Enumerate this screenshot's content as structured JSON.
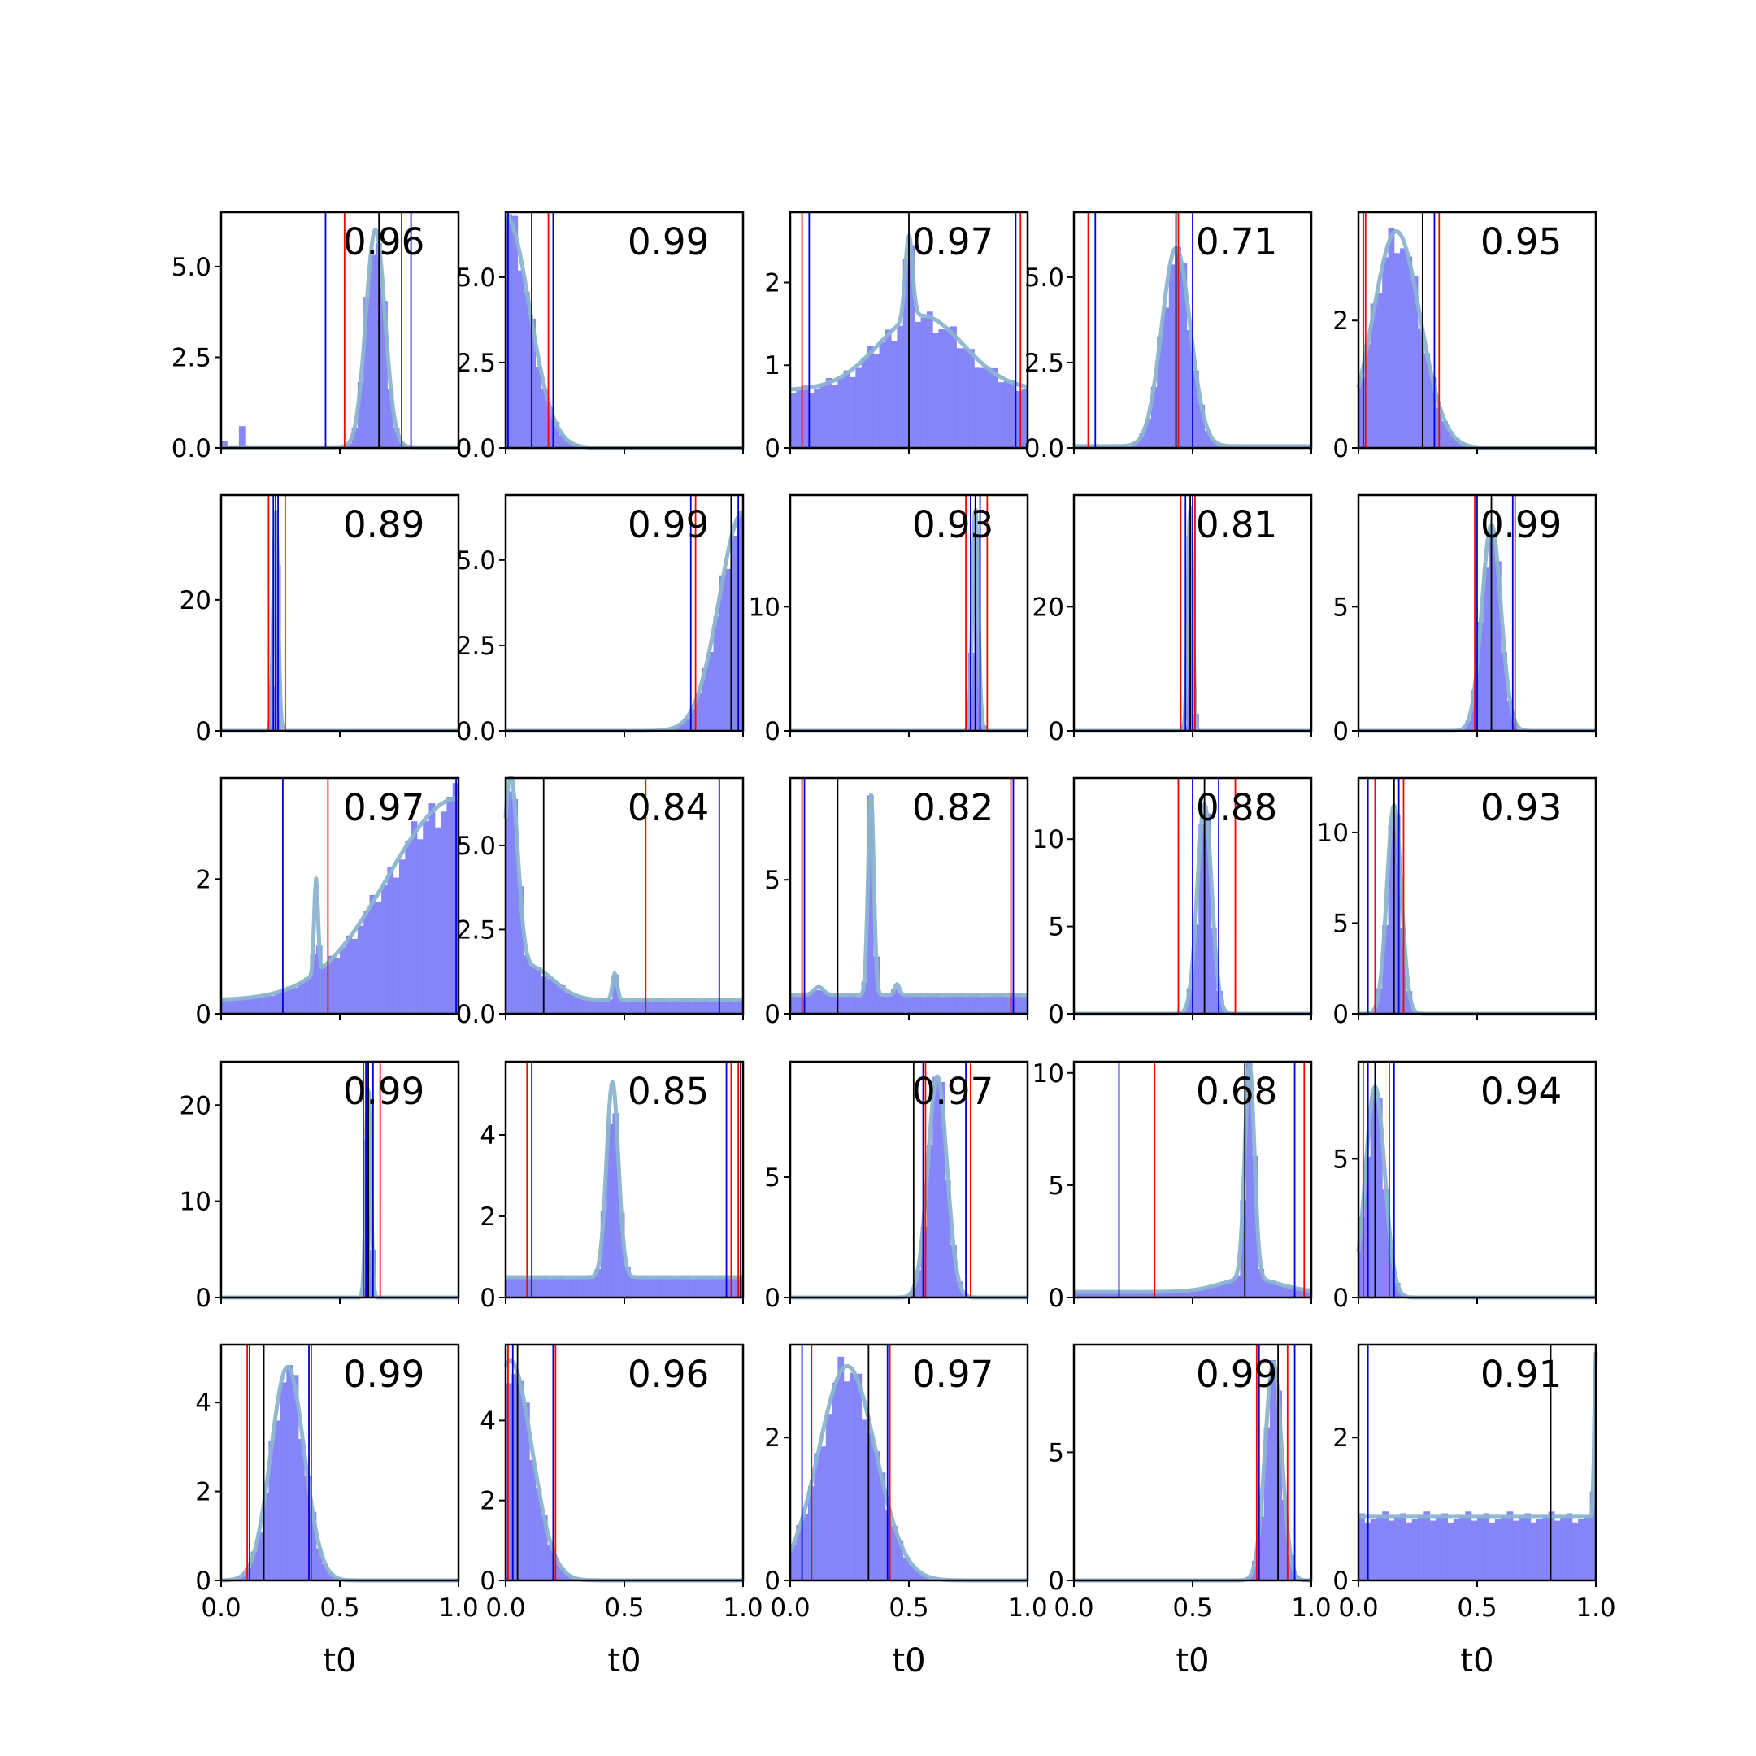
{
  "chart_data": {
    "type": "bar",
    "layout_word": "5x5 grid of histogram panels with shared x axis",
    "xlabel": "t0",
    "xlim": [
      0,
      1
    ],
    "x_ticks": [
      "0.0",
      "0.5",
      "1.0"
    ],
    "colors": {
      "hist": "#8080f8",
      "kde": "#8cb4d0",
      "red_line": "#ff0000",
      "blue_line": "#0000dd",
      "black_line": "#000000"
    },
    "panels": [
      {
        "annotation": "0.96",
        "ylim": [
          0,
          6.5
        ],
        "yticks": [
          0,
          2.5,
          5.0
        ],
        "ytick_labels": [
          "0.0",
          "2.5",
          "5.0"
        ],
        "peaks": [
          {
            "c": 0.65,
            "w": 0.04,
            "h": 6.0
          }
        ],
        "base": 0.02,
        "spikes": [
          {
            "c": 0.02,
            "h": 0.2
          },
          {
            "c": 0.09,
            "h": 0.6
          }
        ],
        "red": [
          0.52,
          0.76
        ],
        "blue": [
          0.44,
          0.8
        ],
        "black": [
          0.665
        ]
      },
      {
        "annotation": "0.99",
        "ylim": [
          0,
          6.9
        ],
        "yticks": [
          0,
          2.5,
          5.0
        ],
        "ytick_labels": [
          "0.0",
          "2.5",
          "5.0"
        ],
        "peaks": [
          {
            "c": 0.0,
            "w": 0.1,
            "h": 6.8
          }
        ],
        "base": 0,
        "spikes": [],
        "red": [
          0.18
        ],
        "blue": [
          0.01,
          0.2
        ],
        "black": [
          0.11
        ]
      },
      {
        "annotation": "0.97",
        "ylim": [
          0,
          2.85
        ],
        "yticks": [
          0,
          1,
          2
        ],
        "ytick_labels": [
          "0",
          "1",
          "2"
        ],
        "peaks": [
          {
            "c": 0.5,
            "w": 0.015,
            "h": 1.0
          },
          {
            "c": 0.55,
            "w": 0.18,
            "h": 0.9
          }
        ],
        "base": 0.7,
        "spikes": [],
        "red": [
          0.05,
          0.97
        ],
        "blue": [
          0.08,
          0.95
        ],
        "black": [
          0.5
        ]
      },
      {
        "annotation": "0.71",
        "ylim": [
          0,
          6.9
        ],
        "yticks": [
          0,
          2.5,
          5.0
        ],
        "ytick_labels": [
          "0.0",
          "2.5",
          "5.0"
        ],
        "peaks": [
          {
            "c": 0.43,
            "w": 0.06,
            "h": 5.8
          }
        ],
        "base": 0.05,
        "spikes": [],
        "red": [
          0.06,
          0.44
        ],
        "blue": [
          0.09,
          0.5
        ],
        "black": [
          0.43
        ]
      },
      {
        "annotation": "0.95",
        "ylim": [
          0,
          3.7
        ],
        "yticks": [
          0,
          2
        ],
        "ytick_labels": [
          "0",
          "2"
        ],
        "peaks": [
          {
            "c": 0.16,
            "w": 0.1,
            "h": 3.4
          }
        ],
        "base": 0,
        "spikes": [],
        "red": [
          0.03,
          0.34
        ],
        "blue": [
          0.02,
          0.32
        ],
        "black": [
          0.27
        ]
      },
      {
        "annotation": "0.89",
        "ylim": [
          0,
          36
        ],
        "yticks": [
          0,
          20
        ],
        "ytick_labels": [
          "0",
          "20"
        ],
        "peaks": [
          {
            "c": 0.23,
            "w": 0.01,
            "h": 34
          }
        ],
        "base": 0,
        "spikes": [],
        "red": [
          0.2,
          0.27
        ],
        "blue": [
          0.22,
          0.24
        ],
        "black": [
          0.23
        ]
      },
      {
        "annotation": "0.99",
        "ylim": [
          0,
          6.9
        ],
        "yticks": [
          0,
          2.5,
          5.0
        ],
        "ytick_labels": [
          "0.0",
          "2.5",
          "5.0"
        ],
        "peaks": [
          {
            "c": 1.0,
            "w": 0.1,
            "h": 6.4
          }
        ],
        "base": 0,
        "spikes": [],
        "red": [
          0.8
        ],
        "blue": [
          0.78,
          0.98
        ],
        "black": [
          0.95
        ]
      },
      {
        "annotation": "0.93",
        "ylim": [
          0,
          19
        ],
        "yticks": [
          0,
          10
        ],
        "ytick_labels": [
          "0",
          "10"
        ],
        "peaks": [
          {
            "c": 0.78,
            "w": 0.012,
            "h": 18
          }
        ],
        "base": 0,
        "spikes": [],
        "red": [
          0.74,
          0.83
        ],
        "blue": [
          0.76,
          0.8
        ],
        "black": [
          0.78
        ]
      },
      {
        "annotation": "0.81",
        "ylim": [
          0,
          38
        ],
        "yticks": [
          0,
          20
        ],
        "ytick_labels": [
          "0",
          "20"
        ],
        "peaks": [
          {
            "c": 0.49,
            "w": 0.01,
            "h": 36
          }
        ],
        "base": 0,
        "spikes": [],
        "red": [
          0.45,
          0.51
        ],
        "blue": [
          0.47,
          0.5
        ],
        "black": [
          0.49
        ]
      },
      {
        "annotation": "0.99",
        "ylim": [
          0,
          9.5
        ],
        "yticks": [
          0,
          5
        ],
        "ytick_labels": [
          "0",
          "5"
        ],
        "peaks": [
          {
            "c": 0.56,
            "w": 0.04,
            "h": 8.3
          }
        ],
        "base": 0,
        "spikes": [],
        "red": [
          0.49,
          0.66
        ],
        "blue": [
          0.5,
          0.65
        ],
        "black": [
          0.56
        ]
      },
      {
        "annotation": "0.97",
        "ylim": [
          0,
          3.5
        ],
        "yticks": [
          0,
          2
        ],
        "ytick_labels": [
          "0",
          "2"
        ],
        "peaks": [
          {
            "c": 1.0,
            "w": 0.3,
            "h": 3.0
          },
          {
            "c": 0.4,
            "w": 0.008,
            "h": 1.4
          }
        ],
        "base": 0.2,
        "spikes": [],
        "red": [
          0.45,
          1.0
        ],
        "blue": [
          0.26,
          0.99
        ],
        "black": [
          1.0
        ]
      },
      {
        "annotation": "0.84",
        "ylim": [
          0,
          7.0
        ],
        "yticks": [
          0,
          2.5,
          5.0
        ],
        "ytick_labels": [
          "0.0",
          "2.5",
          "5.0"
        ],
        "peaks": [
          {
            "c": 0.02,
            "w": 0.03,
            "h": 6.0
          },
          {
            "c": 0.1,
            "w": 0.1,
            "h": 1.0
          },
          {
            "c": 0.46,
            "w": 0.01,
            "h": 0.8
          }
        ],
        "base": 0.4,
        "spikes": [],
        "red": [
          0.59
        ],
        "blue": [
          0.9
        ],
        "black": [
          0.16
        ]
      },
      {
        "annotation": "0.82",
        "ylim": [
          0,
          8.8
        ],
        "yticks": [
          0,
          5
        ],
        "ytick_labels": [
          "0",
          "5"
        ],
        "peaks": [
          {
            "c": 0.34,
            "w": 0.012,
            "h": 7.5
          },
          {
            "c": 0.12,
            "w": 0.02,
            "h": 0.3
          },
          {
            "c": 0.45,
            "w": 0.01,
            "h": 0.4
          }
        ],
        "base": 0.7,
        "spikes": [],
        "red": [
          0.05,
          0.93
        ],
        "blue": [
          0.06,
          0.94
        ],
        "black": [
          0.2
        ]
      },
      {
        "annotation": "0.88",
        "ylim": [
          0,
          13.5
        ],
        "yticks": [
          0,
          5,
          10
        ],
        "ytick_labels": [
          "0",
          "5",
          "10"
        ],
        "peaks": [
          {
            "c": 0.55,
            "w": 0.03,
            "h": 12
          }
        ],
        "base": 0,
        "spikes": [],
        "red": [
          0.44,
          0.68
        ],
        "blue": [
          0.5,
          0.61
        ],
        "black": [
          0.55
        ]
      },
      {
        "annotation": "0.93",
        "ylim": [
          0,
          13
        ],
        "yticks": [
          0,
          5,
          10
        ],
        "ytick_labels": [
          "0",
          "5",
          "10"
        ],
        "peaks": [
          {
            "c": 0.15,
            "w": 0.03,
            "h": 11.5
          }
        ],
        "base": 0,
        "spikes": [],
        "red": [
          0.07,
          0.19
        ],
        "blue": [
          0.04,
          0.17
        ],
        "black": [
          0.15
        ]
      },
      {
        "annotation": "0.99",
        "ylim": [
          0,
          24.5
        ],
        "yticks": [
          0,
          10,
          20
        ],
        "ytick_labels": [
          "0",
          "10",
          "20"
        ],
        "peaks": [
          {
            "c": 0.62,
            "w": 0.01,
            "h": 22
          }
        ],
        "base": 0,
        "spikes": [],
        "red": [
          0.6,
          0.67
        ],
        "blue": [
          0.61,
          0.64
        ],
        "black": [
          0.62
        ]
      },
      {
        "annotation": "0.85",
        "ylim": [
          0,
          5.8
        ],
        "yticks": [
          0,
          2,
          4
        ],
        "ytick_labels": [
          "0",
          "2",
          "4"
        ],
        "peaks": [
          {
            "c": 0.45,
            "w": 0.025,
            "h": 4.8
          }
        ],
        "base": 0.5,
        "spikes": [],
        "red": [
          0.09,
          0.95,
          0.98
        ],
        "blue": [
          0.11,
          0.93
        ],
        "black": [
          0.99
        ]
      },
      {
        "annotation": "0.97",
        "ylim": [
          0,
          9.8
        ],
        "yticks": [
          0,
          5
        ],
        "ytick_labels": [
          "0",
          "5"
        ],
        "peaks": [
          {
            "c": 0.62,
            "w": 0.04,
            "h": 9.2
          }
        ],
        "base": 0,
        "spikes": [],
        "red": [
          0.57,
          0.76
        ],
        "blue": [
          0.56,
          0.74
        ],
        "black": [
          0.52
        ]
      },
      {
        "annotation": "0.68",
        "ylim": [
          0,
          10.5
        ],
        "yticks": [
          0,
          5,
          10
        ],
        "ytick_labels": [
          "0",
          "5",
          "10"
        ],
        "peaks": [
          {
            "c": 0.74,
            "w": 0.02,
            "h": 9.5
          },
          {
            "c": 0.74,
            "w": 0.12,
            "h": 0.6
          }
        ],
        "base": 0.25,
        "spikes": [],
        "red": [
          0.34,
          0.97
        ],
        "blue": [
          0.19,
          0.93
        ],
        "black": [
          0.72
        ]
      },
      {
        "annotation": "0.94",
        "ylim": [
          0,
          8.5
        ],
        "yticks": [
          0,
          5
        ],
        "ytick_labels": [
          "0",
          "5"
        ],
        "peaks": [
          {
            "c": 0.07,
            "w": 0.04,
            "h": 7.6
          }
        ],
        "base": 0,
        "spikes": [],
        "red": [
          0.02,
          0.13
        ],
        "blue": [
          0.04,
          0.15
        ],
        "black": [
          0.07
        ]
      },
      {
        "annotation": "0.99",
        "ylim": [
          0,
          5.3
        ],
        "yticks": [
          0,
          2,
          4
        ],
        "ytick_labels": [
          "0",
          "2",
          "4"
        ],
        "peaks": [
          {
            "c": 0.28,
            "w": 0.07,
            "h": 4.8
          }
        ],
        "base": 0,
        "spikes": [],
        "red": [
          0.11,
          0.38
        ],
        "blue": [
          0.12,
          0.37
        ],
        "black": [
          0.18
        ]
      },
      {
        "annotation": "0.96",
        "ylim": [
          0,
          5.9
        ],
        "yticks": [
          0,
          2,
          4
        ],
        "ytick_labels": [
          "0",
          "2",
          "4"
        ],
        "peaks": [
          {
            "c": 0.02,
            "w": 0.09,
            "h": 5.5
          }
        ],
        "base": 0,
        "spikes": [],
        "red": [
          0.01,
          0.21
        ],
        "blue": [
          0.03,
          0.2
        ],
        "black": [
          0.05
        ]
      },
      {
        "annotation": "0.97",
        "ylim": [
          0,
          3.3
        ],
        "yticks": [
          0,
          2
        ],
        "ytick_labels": [
          "0",
          "2"
        ],
        "peaks": [
          {
            "c": 0.24,
            "w": 0.12,
            "h": 3.0
          }
        ],
        "base": 0,
        "spikes": [],
        "red": [
          0.09,
          0.42
        ],
        "blue": [
          0.05,
          0.41
        ],
        "black": [
          0.33
        ]
      },
      {
        "annotation": "0.99",
        "ylim": [
          0,
          9.2
        ],
        "yticks": [
          0,
          5
        ],
        "ytick_labels": [
          "0",
          "5"
        ],
        "peaks": [
          {
            "c": 0.84,
            "w": 0.035,
            "h": 8.5
          }
        ],
        "base": 0,
        "spikes": [],
        "red": [
          0.77,
          0.9
        ],
        "blue": [
          0.78,
          0.93
        ],
        "black": [
          0.86
        ]
      },
      {
        "annotation": "0.91",
        "ylim": [
          0,
          3.3
        ],
        "yticks": [
          0,
          2
        ],
        "ytick_labels": [
          "0",
          "2"
        ],
        "peaks": [
          {
            "c": 1.0,
            "w": 0.006,
            "h": 2.3
          }
        ],
        "base": 0.9,
        "spikes": [],
        "red": [
          1.0
        ],
        "blue": [
          0.04
        ],
        "black": [
          0.81
        ]
      }
    ]
  }
}
